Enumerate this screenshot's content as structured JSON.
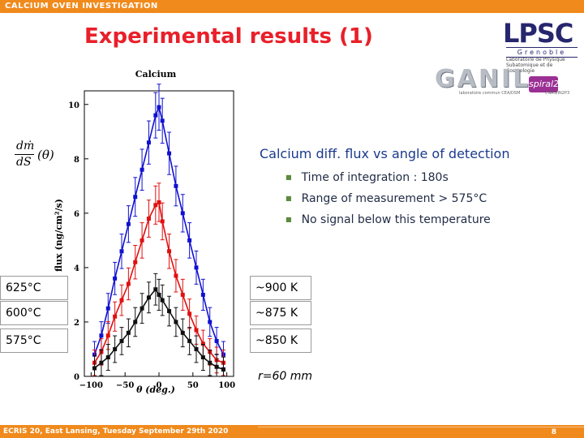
{
  "header": {
    "bar_text": "CALCIUM OVEN INVESTIGATION",
    "title": "Experimental results (1)"
  },
  "logos": {
    "lpsc": {
      "name": "LPSC",
      "city": "Grenoble",
      "subtitle": "Laboratoire de Physique Subatomique et de Cosmologie"
    },
    "ganil": {
      "name": "GANIL",
      "spiral": "spiral2",
      "lab_text": "laboratoire commun CEA/DSM",
      "lab_text2": "CNRS/IN2P3"
    }
  },
  "side_text": {
    "heading": "Calcium diff. flux vs angle of detection",
    "bullets": [
      "Time of integration : 180s",
      "Range of measurement > 575°C",
      "No signal below this temperature"
    ],
    "radius": "r=60 mm"
  },
  "formula": {
    "numerator": "dṁ",
    "denominator": "dS",
    "argument": "(θ)"
  },
  "temperatures": [
    {
      "celsius": "625°C",
      "kelvin": "~900 K"
    },
    {
      "celsius": "600°C",
      "kelvin": "~875 K"
    },
    {
      "celsius": "575°C",
      "kelvin": "~850 K"
    }
  ],
  "footer": {
    "text": "ECRIS 20, East Lansing, Tuesday September 29th 2020",
    "page": "8"
  },
  "colors": {
    "accent": "#f08a1c",
    "title": "#e8202a",
    "heading": "#1a3a8c"
  },
  "chart_data": {
    "type": "line",
    "title": "Calcium",
    "xlabel": "θ (deg.)",
    "ylabel": "flux (ng/cm²/s)",
    "xlim": [
      -110,
      110
    ],
    "ylim": [
      0,
      10.5
    ],
    "xticks": [
      -100,
      -50,
      0,
      50,
      100
    ],
    "yticks": [
      0,
      2,
      4,
      6,
      8,
      10
    ],
    "grid": false,
    "series": [
      {
        "color": "#1010d0",
        "points": [
          {
            "x": -95,
            "y": 0.8
          },
          {
            "x": -85,
            "y": 1.5
          },
          {
            "x": -75,
            "y": 2.5
          },
          {
            "x": -65,
            "y": 3.6
          },
          {
            "x": -55,
            "y": 4.6
          },
          {
            "x": -45,
            "y": 5.6
          },
          {
            "x": -35,
            "y": 6.6
          },
          {
            "x": -25,
            "y": 7.6
          },
          {
            "x": -15,
            "y": 8.6
          },
          {
            "x": -5,
            "y": 9.6
          },
          {
            "x": 0,
            "y": 9.9
          },
          {
            "x": 5,
            "y": 9.4
          },
          {
            "x": 15,
            "y": 8.2
          },
          {
            "x": 25,
            "y": 7.0
          },
          {
            "x": 35,
            "y": 6.0
          },
          {
            "x": 45,
            "y": 5.0
          },
          {
            "x": 55,
            "y": 4.0
          },
          {
            "x": 65,
            "y": 3.0
          },
          {
            "x": 75,
            "y": 2.0
          },
          {
            "x": 85,
            "y": 1.3
          },
          {
            "x": 95,
            "y": 0.8
          }
        ]
      },
      {
        "color": "#e01010",
        "points": [
          {
            "x": -95,
            "y": 0.5
          },
          {
            "x": -85,
            "y": 0.9
          },
          {
            "x": -75,
            "y": 1.5
          },
          {
            "x": -65,
            "y": 2.2
          },
          {
            "x": -55,
            "y": 2.8
          },
          {
            "x": -45,
            "y": 3.4
          },
          {
            "x": -35,
            "y": 4.2
          },
          {
            "x": -25,
            "y": 5.0
          },
          {
            "x": -15,
            "y": 5.8
          },
          {
            "x": -5,
            "y": 6.3
          },
          {
            "x": 0,
            "y": 6.4
          },
          {
            "x": 5,
            "y": 5.7
          },
          {
            "x": 15,
            "y": 4.6
          },
          {
            "x": 25,
            "y": 3.7
          },
          {
            "x": 35,
            "y": 3.0
          },
          {
            "x": 45,
            "y": 2.3
          },
          {
            "x": 55,
            "y": 1.7
          },
          {
            "x": 65,
            "y": 1.2
          },
          {
            "x": 75,
            "y": 0.9
          },
          {
            "x": 85,
            "y": 0.6
          },
          {
            "x": 95,
            "y": 0.5
          }
        ]
      },
      {
        "color": "#101010",
        "points": [
          {
            "x": -95,
            "y": 0.3
          },
          {
            "x": -85,
            "y": 0.5
          },
          {
            "x": -75,
            "y": 0.7
          },
          {
            "x": -65,
            "y": 1.0
          },
          {
            "x": -55,
            "y": 1.3
          },
          {
            "x": -45,
            "y": 1.6
          },
          {
            "x": -35,
            "y": 2.0
          },
          {
            "x": -25,
            "y": 2.5
          },
          {
            "x": -15,
            "y": 2.9
          },
          {
            "x": -5,
            "y": 3.2
          },
          {
            "x": 0,
            "y": 3.0
          },
          {
            "x": 5,
            "y": 2.8
          },
          {
            "x": 15,
            "y": 2.4
          },
          {
            "x": 25,
            "y": 2.0
          },
          {
            "x": 35,
            "y": 1.6
          },
          {
            "x": 45,
            "y": 1.3
          },
          {
            "x": 55,
            "y": 1.0
          },
          {
            "x": 65,
            "y": 0.7
          },
          {
            "x": 75,
            "y": 0.5
          },
          {
            "x": 85,
            "y": 0.35
          },
          {
            "x": 95,
            "y": 0.25
          }
        ]
      }
    ]
  }
}
